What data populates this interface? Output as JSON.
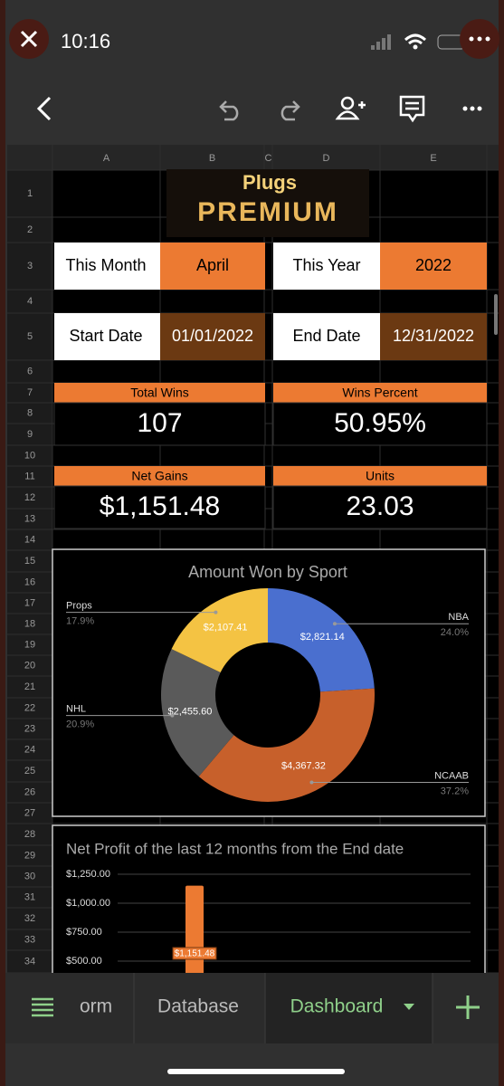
{
  "status_bar": {
    "time": "10:16"
  },
  "sheet": {
    "columns": [
      "A",
      "B",
      "C",
      "D",
      "E"
    ],
    "rows": [
      1,
      2,
      3,
      4,
      5,
      6,
      7,
      8,
      9,
      10,
      11,
      12,
      13,
      14,
      15,
      16,
      17,
      18,
      19,
      20,
      21,
      22,
      23,
      24,
      25,
      26,
      27,
      28,
      29,
      30,
      31,
      32,
      33,
      34
    ]
  },
  "logo": {
    "line1": "Plugs",
    "line2": "PREMIUM"
  },
  "cells": {
    "this_month_label": "This Month",
    "this_month": "April",
    "this_year_label": "This Year",
    "this_year": "2022",
    "start_date_label": "Start Date",
    "start_date": "01/01/2022",
    "end_date_label": "End Date",
    "end_date": "12/31/2022"
  },
  "stats": [
    {
      "label": "Total Wins",
      "value": "107"
    },
    {
      "label": "Wins Percent",
      "value": "50.95%"
    },
    {
      "label": "Net Gains",
      "value": "$1,151.48"
    },
    {
      "label": "Units",
      "value": "23.03"
    }
  ],
  "chart_data": [
    {
      "type": "pie",
      "title": "Amount Won by Sport",
      "categories": [
        "NBA",
        "NCAAB",
        "NHL",
        "Props"
      ],
      "values": [
        24.0,
        37.2,
        20.9,
        17.9
      ],
      "value_labels": [
        "24.0%",
        "37.2%",
        "20.9%",
        "17.9%"
      ],
      "data_labels": [
        "$2,821.14",
        "$4,367.32",
        "$2,455.60",
        "$2,107.41"
      ],
      "colors": [
        "#4a6fcf",
        "#c7602b",
        "#5a5a5a",
        "#f4c343"
      ]
    },
    {
      "type": "bar",
      "title": "Net Profit of the last 12 months from the End date",
      "categories": [
        null
      ],
      "values": [
        1151.48
      ],
      "value_labels": [
        "$1,151.48"
      ],
      "color": "#ec7a32",
      "ylim": [
        0,
        1250
      ],
      "yticks": [
        {
          "value": 500,
          "label": "$500.00"
        },
        {
          "value": 750,
          "label": "$750.00"
        },
        {
          "value": 1000,
          "label": "$1,000.00"
        },
        {
          "value": 1250,
          "label": "$1,250.00"
        }
      ],
      "grid": true
    }
  ],
  "tabs": [
    "orm",
    "Database",
    "Dashboard"
  ]
}
